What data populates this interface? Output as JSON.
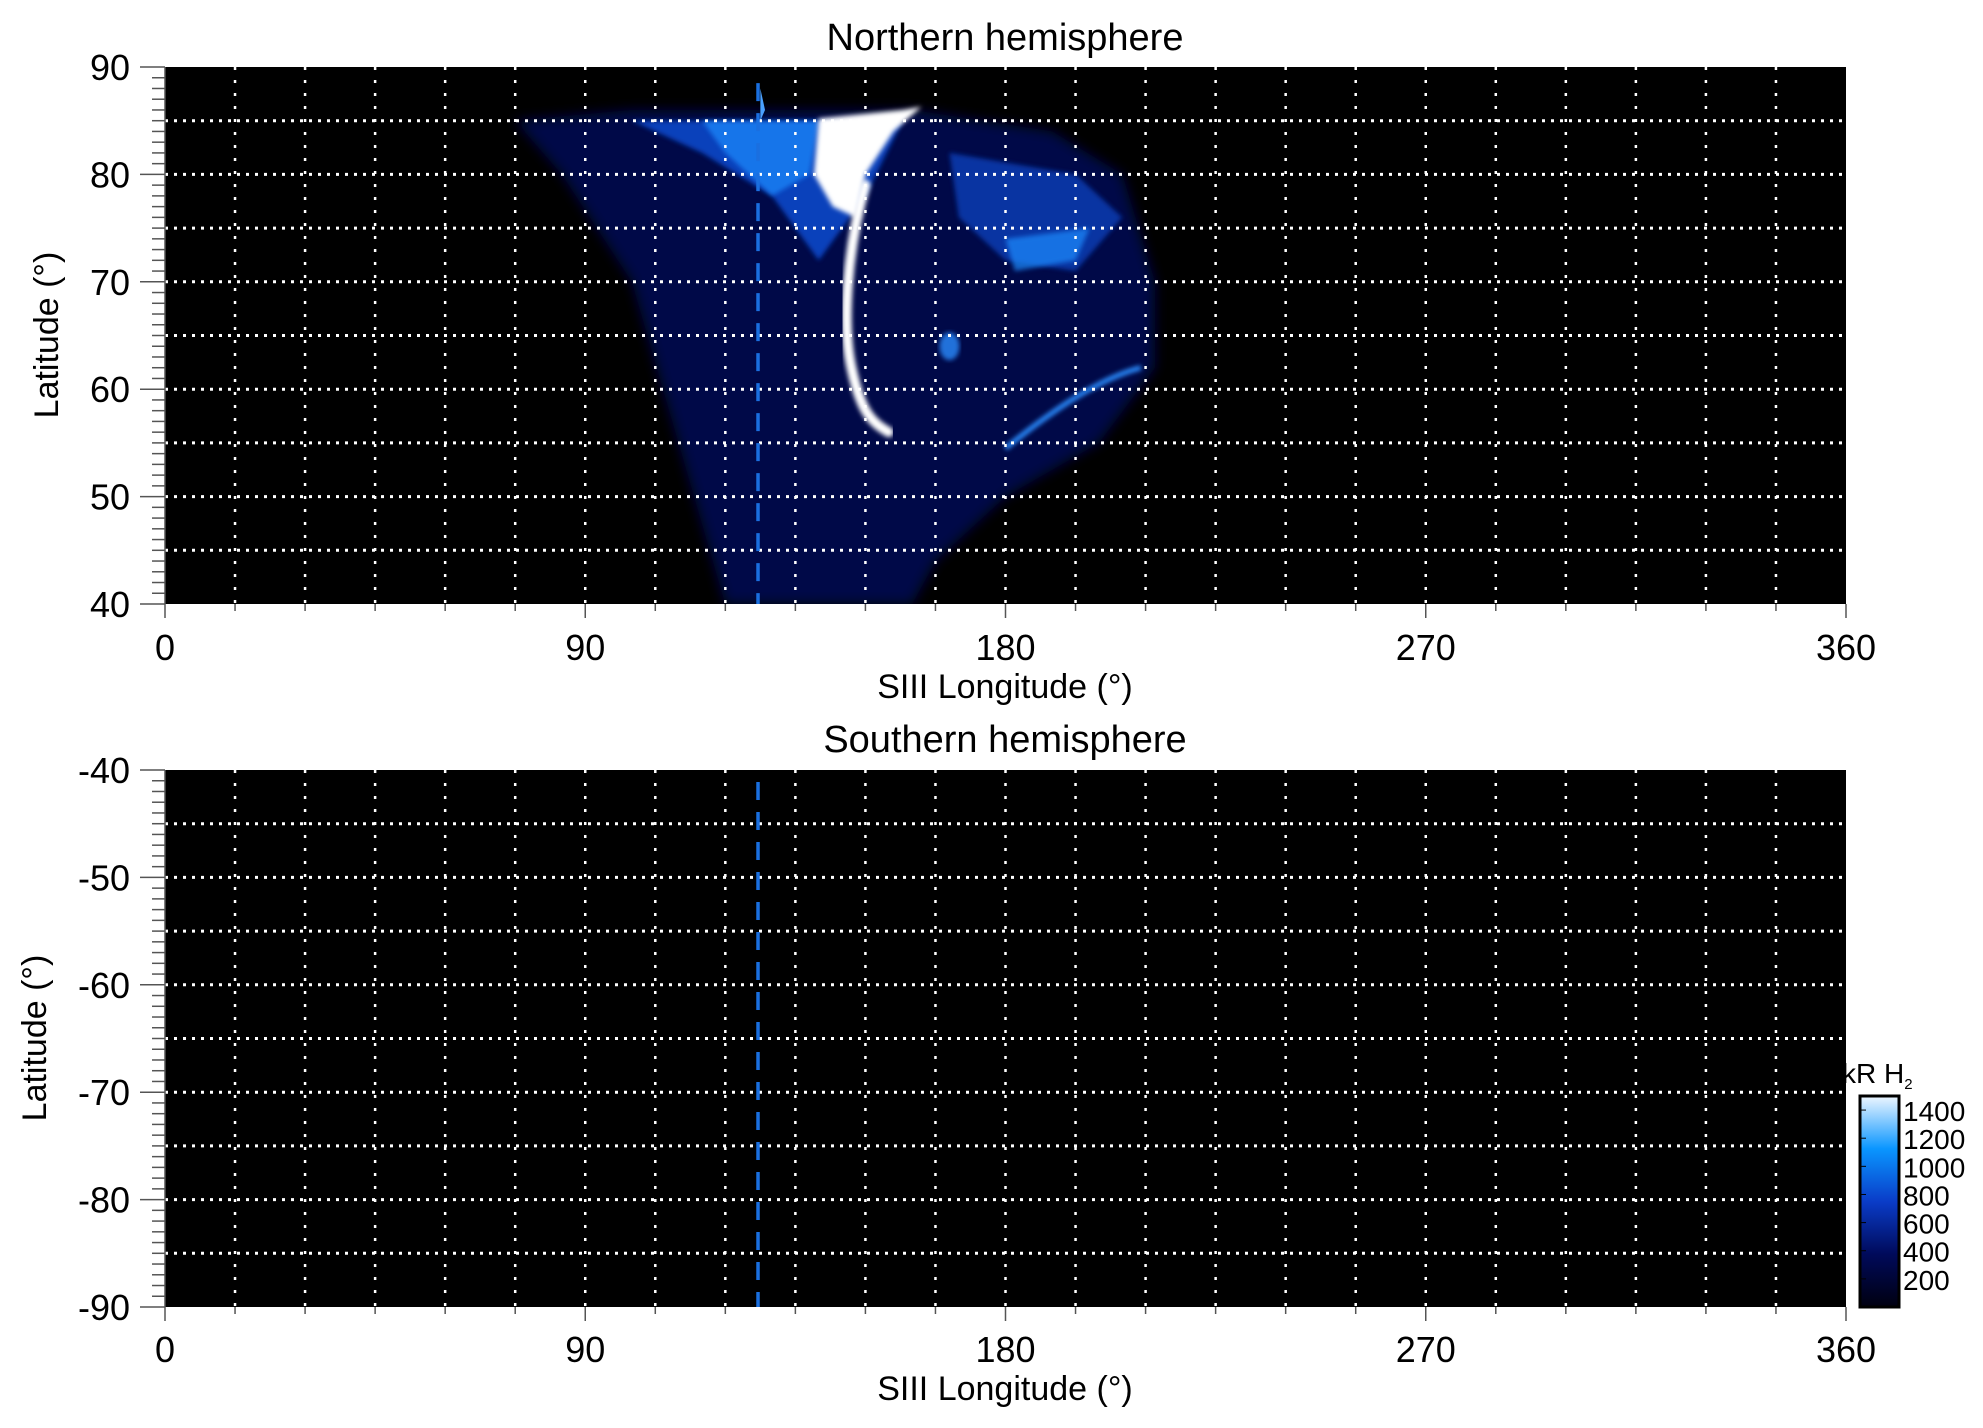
{
  "chart_data": [
    {
      "type": "heatmap",
      "title": "Northern hemisphere",
      "xlabel": "SIII Longitude (°)",
      "ylabel": "Latitude (°)",
      "xlim": [
        0,
        360
      ],
      "ylim": [
        40,
        90
      ],
      "xticks": [
        "0",
        "90",
        "180",
        "270",
        "360"
      ],
      "yticks": [
        "90",
        "80",
        "70",
        "60",
        "50",
        "40"
      ],
      "grid": true,
      "grid_x_step": 15,
      "grid_y_step": 5,
      "reference_line_longitude": 127,
      "reference_line_color": "#1a6fe0",
      "emission_extent": {
        "longitude": [
          75,
          212
        ],
        "latitude": [
          40,
          86
        ]
      }
    },
    {
      "type": "heatmap",
      "title": "Southern hemisphere",
      "xlabel": "SIII Longitude (°)",
      "ylabel": "Latitude (°)",
      "xlim": [
        0,
        360
      ],
      "ylim": [
        -90,
        -40
      ],
      "xticks": [
        "0",
        "90",
        "180",
        "270",
        "360"
      ],
      "yticks": [
        "-40",
        "-50",
        "-60",
        "-70",
        "-80",
        "-90"
      ],
      "grid": true,
      "grid_x_step": 15,
      "grid_y_step": 5,
      "reference_line_longitude": 127,
      "reference_line_color": "#1a6fe0"
    }
  ],
  "colorbar": {
    "label": "kR H",
    "label_subscript": "2",
    "range": [
      0,
      1500
    ],
    "ticks": [
      "1400",
      "1200",
      "1000",
      "800",
      "600",
      "400",
      "200"
    ],
    "colors": [
      "#000010",
      "#000a5a",
      "#0a3cc8",
      "#0a96ff",
      "#eef6ff"
    ]
  }
}
